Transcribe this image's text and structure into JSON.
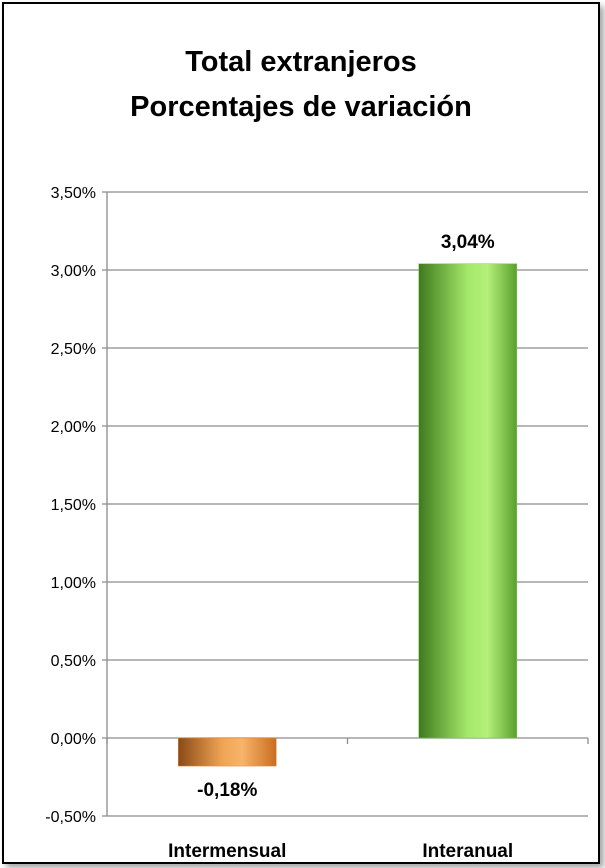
{
  "chart_data": {
    "type": "bar",
    "title_lines": [
      "Total extranjeros",
      "Porcentajes de variación"
    ],
    "categories": [
      "Intermensual",
      "Interanual"
    ],
    "values": [
      -0.18,
      3.04
    ],
    "data_labels": [
      "-0,18%",
      "3,04%"
    ],
    "ylim": [
      -0.5,
      3.5
    ],
    "yticks": [
      -0.5,
      0,
      0.5,
      1,
      1.5,
      2,
      2.5,
      3,
      3.5
    ],
    "ytick_labels": [
      "-0,50%",
      "0,00%",
      "0,50%",
      "1,00%",
      "1,50%",
      "2,00%",
      "2,50%",
      "3,00%",
      "3,50%"
    ],
    "grid": true,
    "legend": "none",
    "bar_colors": [
      "#e58a3a",
      "#7cc446"
    ]
  }
}
